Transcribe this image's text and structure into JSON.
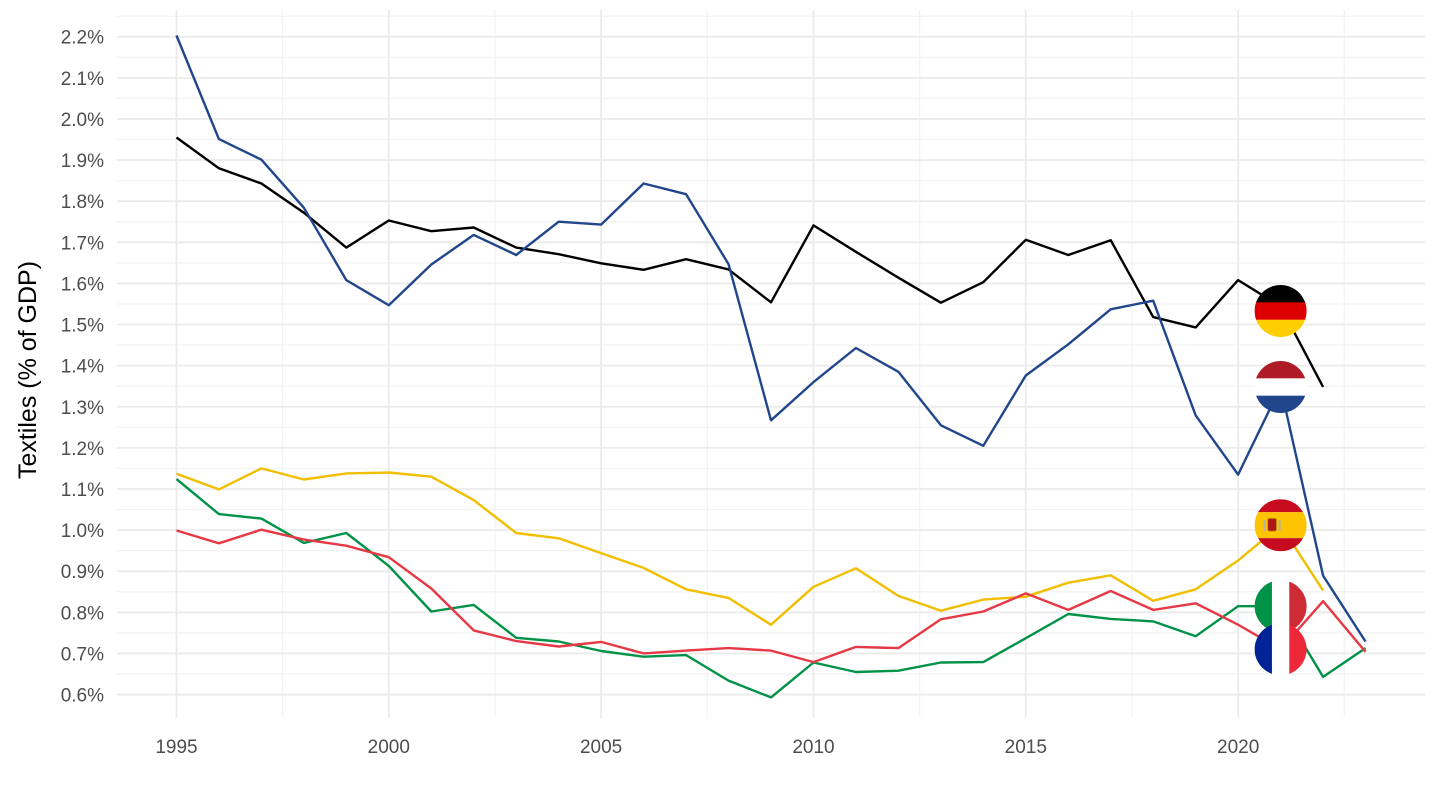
{
  "chart_data": {
    "type": "line",
    "title": "",
    "xlabel": "",
    "ylabel": "Textiles (% of GDP)",
    "xlim": [
      1993.6,
      2024.4
    ],
    "ylim": [
      0.543,
      2.265
    ],
    "x_ticks": [
      1995,
      2000,
      2005,
      2010,
      2015,
      2020
    ],
    "x_tick_labels": [
      "1995",
      "2000",
      "2005",
      "2010",
      "2015",
      "2020"
    ],
    "y_ticks": [
      0.6,
      0.7,
      0.8,
      0.9,
      1.0,
      1.1,
      1.2,
      1.3,
      1.4,
      1.5,
      1.6,
      1.7,
      1.8,
      1.9,
      2.0,
      2.1,
      2.2
    ],
    "y_tick_labels": [
      "0.6%",
      "0.7%",
      "0.8%",
      "0.9%",
      "1.0%",
      "1.1%",
      "1.2%",
      "1.3%",
      "1.4%",
      "1.5%",
      "1.6%",
      "1.7%",
      "1.8%",
      "1.9%",
      "2.0%",
      "2.1%",
      "2.2%"
    ],
    "grid": true,
    "legend": "flag markers at series ends",
    "series": [
      {
        "country": "Germany",
        "flag": "germany-flag-icon",
        "color": "#000000",
        "flag_x": 2021,
        "flag_y": 1.533,
        "x": [
          1995,
          1996,
          1997,
          1998,
          1999,
          2000,
          2001,
          2002,
          2003,
          2004,
          2005,
          2006,
          2007,
          2008,
          2009,
          2010,
          2011,
          2012,
          2013,
          2014,
          2015,
          2016,
          2017,
          2018,
          2019,
          2020,
          2021,
          2022
        ],
        "values": [
          1.955,
          1.88,
          1.843,
          1.772,
          1.687,
          1.753,
          1.727,
          1.736,
          1.687,
          1.671,
          1.649,
          1.633,
          1.659,
          1.634,
          1.554,
          1.741,
          1.677,
          1.614,
          1.553,
          1.603,
          1.706,
          1.669,
          1.705,
          1.518,
          1.493,
          1.608,
          1.544,
          1.348
        ]
      },
      {
        "country": "Netherlands",
        "flag": "netherlands-flag-icon",
        "color": "#21468b",
        "flag_x": 2021,
        "flag_y": 1.348,
        "x": [
          1995,
          1996,
          1997,
          1998,
          1999,
          2000,
          2001,
          2002,
          2003,
          2004,
          2005,
          2006,
          2007,
          2008,
          2009,
          2010,
          2011,
          2012,
          2013,
          2014,
          2015,
          2016,
          2017,
          2018,
          2019,
          2020,
          2021,
          2022,
          2023
        ],
        "values": [
          2.203,
          1.951,
          1.901,
          1.784,
          1.608,
          1.547,
          1.646,
          1.718,
          1.669,
          1.75,
          1.743,
          1.843,
          1.817,
          1.647,
          1.267,
          1.36,
          1.443,
          1.385,
          1.255,
          1.205,
          1.376,
          1.452,
          1.537,
          1.558,
          1.279,
          1.135,
          1.348,
          0.889,
          0.729
        ]
      },
      {
        "country": "Spain",
        "flag": "spain-flag-icon",
        "color": "#f1bf00",
        "flag_x": 2021,
        "flag_y": 1.012,
        "x": [
          1995,
          1996,
          1997,
          1998,
          1999,
          2000,
          2001,
          2002,
          2003,
          2004,
          2005,
          2006,
          2007,
          2008,
          2009,
          2010,
          2011,
          2012,
          2013,
          2014,
          2015,
          2016,
          2017,
          2018,
          2019,
          2020,
          2021,
          2022
        ],
        "values": [
          1.137,
          1.099,
          1.15,
          1.123,
          1.138,
          1.14,
          1.13,
          1.073,
          0.993,
          0.98,
          0.944,
          0.908,
          0.856,
          0.835,
          0.77,
          0.862,
          0.907,
          0.84,
          0.804,
          0.831,
          0.838,
          0.872,
          0.89,
          0.828,
          0.856,
          0.926,
          1.012,
          0.853
        ]
      },
      {
        "country": "Italy",
        "flag": "italy-flag-icon",
        "color": "#009246",
        "flag_x": 2021,
        "flag_y": 0.815,
        "x": [
          1995,
          1996,
          1997,
          1998,
          1999,
          2000,
          2001,
          2002,
          2003,
          2004,
          2005,
          2006,
          2007,
          2008,
          2009,
          2010,
          2011,
          2012,
          2013,
          2014,
          2015,
          2016,
          2017,
          2018,
          2019,
          2020,
          2021,
          2022,
          2023
        ],
        "values": [
          1.124,
          1.039,
          1.028,
          0.969,
          0.993,
          0.913,
          0.802,
          0.818,
          0.738,
          0.729,
          0.706,
          0.692,
          0.696,
          0.634,
          0.593,
          0.678,
          0.655,
          0.658,
          0.678,
          0.679,
          0.737,
          0.796,
          0.784,
          0.778,
          0.742,
          0.815,
          0.815,
          0.643,
          0.713
        ]
      },
      {
        "country": "France",
        "flag": "france-flag-icon",
        "color": "#e63946",
        "flag_x": 2021,
        "flag_y": 0.71,
        "x": [
          1995,
          1996,
          1997,
          1998,
          1999,
          2000,
          2001,
          2002,
          2003,
          2004,
          2005,
          2006,
          2007,
          2008,
          2009,
          2010,
          2011,
          2012,
          2013,
          2014,
          2015,
          2016,
          2017,
          2018,
          2019,
          2020,
          2021,
          2022,
          2023
        ],
        "values": [
          0.999,
          0.968,
          1.001,
          0.977,
          0.962,
          0.934,
          0.858,
          0.756,
          0.73,
          0.717,
          0.728,
          0.7,
          0.707,
          0.713,
          0.707,
          0.679,
          0.716,
          0.713,
          0.783,
          0.802,
          0.846,
          0.806,
          0.852,
          0.806,
          0.822,
          0.77,
          0.71,
          0.827,
          0.704
        ]
      }
    ]
  }
}
